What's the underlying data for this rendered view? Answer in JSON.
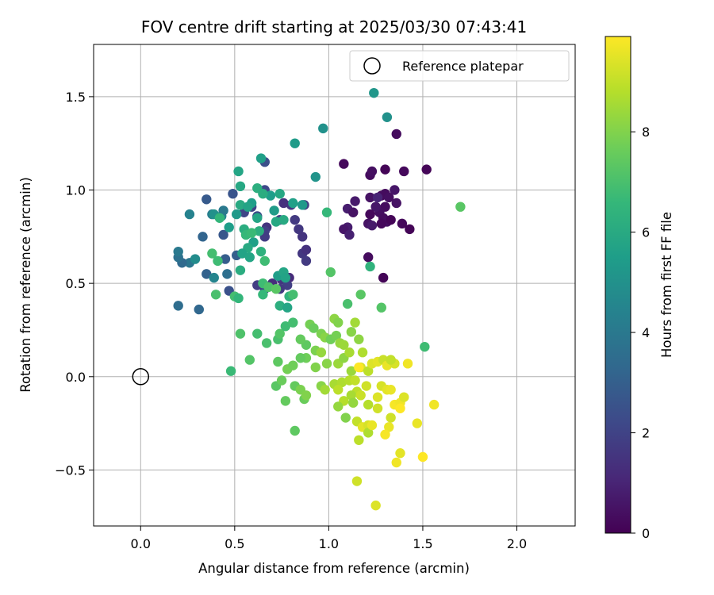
{
  "chart_data": {
    "type": "scatter",
    "title": "FOV centre drift starting at 2025/03/30 07:43:41",
    "xlabel": "Angular distance from reference (arcmin)",
    "ylabel": "Rotation from reference (arcmin)",
    "xlim": [
      -0.25,
      2.31
    ],
    "ylim": [
      -0.8,
      1.78
    ],
    "xticks": [
      0.0,
      0.5,
      1.0,
      1.5,
      2.0
    ],
    "xtick_labels": [
      "0.0",
      "0.5",
      "1.0",
      "1.5",
      "2.0"
    ],
    "yticks": [
      -0.5,
      0.0,
      0.5,
      1.0,
      1.5
    ],
    "ytick_labels": [
      "−0.5",
      "0.0",
      "0.5",
      "1.0",
      "1.5"
    ],
    "grid": true,
    "legend_placement": "top-right",
    "legend": [
      {
        "label": "Reference platepar",
        "marker": "open-circle"
      }
    ],
    "reference_point": {
      "x": 0.0,
      "y": 0.0
    },
    "colorbar": {
      "label": "Hours from first FF file",
      "colormap": "viridis",
      "range": [
        0,
        9.9
      ],
      "ticks": [
        0,
        2,
        4,
        6,
        8
      ],
      "tick_labels": [
        "0",
        "2",
        "4",
        "6",
        "8"
      ]
    },
    "colormap_stops": [
      "#440154",
      "#482878",
      "#3e4989",
      "#31688e",
      "#26828e",
      "#1f9e89",
      "#35b779",
      "#6ece58",
      "#b5de2b",
      "#fde725"
    ],
    "points": [
      {
        "x": 1.08,
        "y": 1.14,
        "h": 0.2
      },
      {
        "x": 1.22,
        "y": 1.08,
        "h": 0.3
      },
      {
        "x": 1.23,
        "y": 1.1,
        "h": 0.4
      },
      {
        "x": 1.3,
        "y": 1.11,
        "h": 0.1
      },
      {
        "x": 1.4,
        "y": 1.1,
        "h": 0.2
      },
      {
        "x": 1.52,
        "y": 1.11,
        "h": 0.1
      },
      {
        "x": 1.36,
        "y": 1.3,
        "h": 0.3
      },
      {
        "x": 1.22,
        "y": 0.96,
        "h": 0.5
      },
      {
        "x": 1.28,
        "y": 0.97,
        "h": 0.2
      },
      {
        "x": 1.3,
        "y": 0.98,
        "h": 0.3
      },
      {
        "x": 1.32,
        "y": 0.96,
        "h": 0.4
      },
      {
        "x": 1.35,
        "y": 1.0,
        "h": 0.6
      },
      {
        "x": 1.14,
        "y": 0.94,
        "h": 0.7
      },
      {
        "x": 1.1,
        "y": 0.9,
        "h": 0.8
      },
      {
        "x": 1.13,
        "y": 0.88,
        "h": 0.5
      },
      {
        "x": 1.3,
        "y": 0.91,
        "h": 0.3
      },
      {
        "x": 1.27,
        "y": 0.88,
        "h": 0.4
      },
      {
        "x": 1.25,
        "y": 0.91,
        "h": 0.6
      },
      {
        "x": 1.36,
        "y": 0.93,
        "h": 0.5
      },
      {
        "x": 1.22,
        "y": 0.87,
        "h": 0.2
      },
      {
        "x": 1.29,
        "y": 0.85,
        "h": 0.3
      },
      {
        "x": 1.31,
        "y": 0.83,
        "h": 0.4
      },
      {
        "x": 1.28,
        "y": 0.82,
        "h": 0.2
      },
      {
        "x": 1.33,
        "y": 0.84,
        "h": 0.1
      },
      {
        "x": 1.39,
        "y": 0.82,
        "h": 0.2
      },
      {
        "x": 1.43,
        "y": 0.79,
        "h": 0.1
      },
      {
        "x": 1.21,
        "y": 0.82,
        "h": 0.5
      },
      {
        "x": 1.1,
        "y": 0.8,
        "h": 0.8
      },
      {
        "x": 1.08,
        "y": 0.79,
        "h": 0.6
      },
      {
        "x": 1.11,
        "y": 0.76,
        "h": 0.9
      },
      {
        "x": 1.23,
        "y": 0.81,
        "h": 0.7
      },
      {
        "x": 1.21,
        "y": 0.64,
        "h": 0.3
      },
      {
        "x": 1.29,
        "y": 0.53,
        "h": 0.1
      },
      {
        "x": 1.26,
        "y": 0.96,
        "h": 1.0
      },
      {
        "x": 0.66,
        "y": 1.15,
        "h": 2.4
      },
      {
        "x": 0.49,
        "y": 0.98,
        "h": 2.6
      },
      {
        "x": 0.66,
        "y": 1.0,
        "h": 2.2
      },
      {
        "x": 0.35,
        "y": 0.95,
        "h": 2.8
      },
      {
        "x": 0.8,
        "y": 0.92,
        "h": 1.6
      },
      {
        "x": 0.76,
        "y": 0.93,
        "h": 1.4
      },
      {
        "x": 0.87,
        "y": 0.92,
        "h": 1.8
      },
      {
        "x": 0.59,
        "y": 0.91,
        "h": 2.0
      },
      {
        "x": 0.55,
        "y": 0.88,
        "h": 2.1
      },
      {
        "x": 0.62,
        "y": 0.86,
        "h": 2.3
      },
      {
        "x": 0.74,
        "y": 0.84,
        "h": 1.9
      },
      {
        "x": 0.82,
        "y": 0.84,
        "h": 1.7
      },
      {
        "x": 0.67,
        "y": 0.8,
        "h": 1.5
      },
      {
        "x": 0.66,
        "y": 0.78,
        "h": 1.9
      },
      {
        "x": 0.84,
        "y": 0.79,
        "h": 1.6
      },
      {
        "x": 0.86,
        "y": 0.75,
        "h": 1.5
      },
      {
        "x": 0.44,
        "y": 0.76,
        "h": 2.7
      },
      {
        "x": 0.33,
        "y": 0.75,
        "h": 3.2
      },
      {
        "x": 0.66,
        "y": 0.75,
        "h": 1.8
      },
      {
        "x": 0.86,
        "y": 0.66,
        "h": 1.6
      },
      {
        "x": 0.88,
        "y": 0.68,
        "h": 1.4
      },
      {
        "x": 0.88,
        "y": 0.62,
        "h": 1.7
      },
      {
        "x": 0.45,
        "y": 0.63,
        "h": 2.9
      },
      {
        "x": 0.51,
        "y": 0.65,
        "h": 3.0
      },
      {
        "x": 0.35,
        "y": 0.55,
        "h": 3.1
      },
      {
        "x": 0.7,
        "y": 0.5,
        "h": 1.3
      },
      {
        "x": 0.75,
        "y": 0.52,
        "h": 1.5
      },
      {
        "x": 0.79,
        "y": 0.53,
        "h": 1.2
      },
      {
        "x": 0.78,
        "y": 0.49,
        "h": 1.9
      },
      {
        "x": 0.74,
        "y": 0.47,
        "h": 1.7
      },
      {
        "x": 0.66,
        "y": 0.47,
        "h": 2.0
      },
      {
        "x": 0.62,
        "y": 0.49,
        "h": 1.8
      },
      {
        "x": 0.47,
        "y": 0.46,
        "h": 2.5
      },
      {
        "x": 0.2,
        "y": 0.38,
        "h": 3.5
      },
      {
        "x": 0.31,
        "y": 0.36,
        "h": 3.3
      },
      {
        "x": 0.46,
        "y": 0.55,
        "h": 3.6
      },
      {
        "x": 0.26,
        "y": 0.61,
        "h": 3.9
      },
      {
        "x": 0.22,
        "y": 0.61,
        "h": 3.4
      },
      {
        "x": 0.2,
        "y": 0.64,
        "h": 3.7
      },
      {
        "x": 0.2,
        "y": 0.67,
        "h": 4.0
      },
      {
        "x": 0.26,
        "y": 0.87,
        "h": 4.4
      },
      {
        "x": 0.38,
        "y": 0.87,
        "h": 4.2
      },
      {
        "x": 0.43,
        "y": 0.86,
        "h": 4.6
      },
      {
        "x": 0.44,
        "y": 0.89,
        "h": 4.0
      },
      {
        "x": 0.29,
        "y": 0.63,
        "h": 4.8
      },
      {
        "x": 0.39,
        "y": 0.53,
        "h": 4.5
      },
      {
        "x": 0.52,
        "y": 1.1,
        "h": 5.8
      },
      {
        "x": 0.64,
        "y": 1.17,
        "h": 5.6
      },
      {
        "x": 0.82,
        "y": 1.25,
        "h": 5.4
      },
      {
        "x": 0.97,
        "y": 1.33,
        "h": 5.0
      },
      {
        "x": 1.24,
        "y": 1.52,
        "h": 5.2
      },
      {
        "x": 1.31,
        "y": 1.39,
        "h": 5.0
      },
      {
        "x": 0.93,
        "y": 1.07,
        "h": 5.1
      },
      {
        "x": 0.53,
        "y": 1.02,
        "h": 5.9
      },
      {
        "x": 0.62,
        "y": 1.01,
        "h": 6.2
      },
      {
        "x": 0.59,
        "y": 0.93,
        "h": 5.5
      },
      {
        "x": 0.53,
        "y": 0.92,
        "h": 6.0
      },
      {
        "x": 0.57,
        "y": 0.91,
        "h": 5.7
      },
      {
        "x": 0.51,
        "y": 0.87,
        "h": 5.3
      },
      {
        "x": 0.47,
        "y": 0.8,
        "h": 5.5
      },
      {
        "x": 0.55,
        "y": 0.79,
        "h": 6.1
      },
      {
        "x": 0.62,
        "y": 0.85,
        "h": 5.8
      },
      {
        "x": 0.63,
        "y": 0.78,
        "h": 6.2
      },
      {
        "x": 0.56,
        "y": 0.76,
        "h": 5.9
      },
      {
        "x": 0.6,
        "y": 0.72,
        "h": 5.6
      },
      {
        "x": 0.57,
        "y": 0.69,
        "h": 6.0
      },
      {
        "x": 0.54,
        "y": 0.66,
        "h": 5.7
      },
      {
        "x": 0.58,
        "y": 0.64,
        "h": 5.8
      },
      {
        "x": 0.64,
        "y": 0.67,
        "h": 6.3
      },
      {
        "x": 0.53,
        "y": 0.57,
        "h": 6.1
      },
      {
        "x": 0.71,
        "y": 0.89,
        "h": 5.4
      },
      {
        "x": 0.72,
        "y": 0.83,
        "h": 5.9
      },
      {
        "x": 0.76,
        "y": 0.84,
        "h": 6.0
      },
      {
        "x": 0.81,
        "y": 0.93,
        "h": 5.6
      },
      {
        "x": 0.86,
        "y": 0.92,
        "h": 5.3
      },
      {
        "x": 0.74,
        "y": 0.98,
        "h": 5.9
      },
      {
        "x": 0.69,
        "y": 0.97,
        "h": 5.5
      },
      {
        "x": 0.65,
        "y": 0.98,
        "h": 6.1
      },
      {
        "x": 0.73,
        "y": 0.54,
        "h": 5.5
      },
      {
        "x": 0.76,
        "y": 0.56,
        "h": 5.8
      },
      {
        "x": 1.22,
        "y": 0.59,
        "h": 6.4
      },
      {
        "x": 0.77,
        "y": 0.53,
        "h": 5.7
      },
      {
        "x": 0.99,
        "y": 0.88,
        "h": 6.6
      },
      {
        "x": 0.39,
        "y": 0.87,
        "h": 5.0
      },
      {
        "x": 0.42,
        "y": 0.85,
        "h": 6.5
      },
      {
        "x": 0.38,
        "y": 0.66,
        "h": 6.9
      },
      {
        "x": 0.41,
        "y": 0.62,
        "h": 6.8
      },
      {
        "x": 0.56,
        "y": 0.76,
        "h": 6.6
      },
      {
        "x": 0.59,
        "y": 0.77,
        "h": 6.7
      },
      {
        "x": 0.66,
        "y": 0.62,
        "h": 6.8
      },
      {
        "x": 0.5,
        "y": 0.43,
        "h": 6.9
      },
      {
        "x": 0.52,
        "y": 0.42,
        "h": 6.5
      },
      {
        "x": 0.4,
        "y": 0.44,
        "h": 7.0
      },
      {
        "x": 0.48,
        "y": 0.03,
        "h": 6.7
      },
      {
        "x": 0.53,
        "y": 0.23,
        "h": 7.1
      },
      {
        "x": 0.62,
        "y": 0.23,
        "h": 6.9
      },
      {
        "x": 0.58,
        "y": 0.09,
        "h": 7.2
      },
      {
        "x": 0.67,
        "y": 0.18,
        "h": 7.0
      },
      {
        "x": 0.65,
        "y": 0.5,
        "h": 6.8
      },
      {
        "x": 0.68,
        "y": 0.48,
        "h": 7.1
      },
      {
        "x": 0.72,
        "y": 0.47,
        "h": 7.3
      },
      {
        "x": 0.65,
        "y": 0.44,
        "h": 6.6
      },
      {
        "x": 0.74,
        "y": 0.38,
        "h": 6.2
      },
      {
        "x": 0.78,
        "y": 0.37,
        "h": 5.8
      },
      {
        "x": 0.79,
        "y": 0.43,
        "h": 6.4
      },
      {
        "x": 0.81,
        "y": 0.44,
        "h": 6.9
      },
      {
        "x": 0.73,
        "y": 0.2,
        "h": 7.0
      },
      {
        "x": 0.74,
        "y": 0.23,
        "h": 7.2
      },
      {
        "x": 0.77,
        "y": 0.27,
        "h": 6.8
      },
      {
        "x": 0.81,
        "y": 0.29,
        "h": 6.9
      },
      {
        "x": 1.01,
        "y": 0.56,
        "h": 7.2
      },
      {
        "x": 1.1,
        "y": 0.39,
        "h": 7.0
      },
      {
        "x": 1.17,
        "y": 0.44,
        "h": 7.3
      },
      {
        "x": 1.28,
        "y": 0.37,
        "h": 7.2
      },
      {
        "x": 1.51,
        "y": 0.16,
        "h": 6.8
      },
      {
        "x": 1.7,
        "y": 0.91,
        "h": 7.3
      },
      {
        "x": 0.82,
        "y": -0.29,
        "h": 7.4
      },
      {
        "x": 0.77,
        "y": -0.13,
        "h": 7.5
      },
      {
        "x": 0.72,
        "y": -0.05,
        "h": 7.3
      },
      {
        "x": 0.75,
        "y": -0.02,
        "h": 7.6
      },
      {
        "x": 0.73,
        "y": 0.08,
        "h": 7.4
      },
      {
        "x": 0.78,
        "y": 0.04,
        "h": 7.8
      },
      {
        "x": 0.81,
        "y": 0.06,
        "h": 7.7
      },
      {
        "x": 0.82,
        "y": -0.05,
        "h": 7.5
      },
      {
        "x": 0.85,
        "y": -0.07,
        "h": 7.9
      },
      {
        "x": 0.87,
        "y": -0.12,
        "h": 7.6
      },
      {
        "x": 0.88,
        "y": -0.1,
        "h": 8.0
      },
      {
        "x": 0.88,
        "y": 0.17,
        "h": 7.4
      },
      {
        "x": 0.85,
        "y": 0.2,
        "h": 7.5
      },
      {
        "x": 0.9,
        "y": 0.28,
        "h": 7.8
      },
      {
        "x": 0.92,
        "y": 0.26,
        "h": 7.6
      },
      {
        "x": 0.96,
        "y": 0.23,
        "h": 7.9
      },
      {
        "x": 0.98,
        "y": 0.21,
        "h": 8.1
      },
      {
        "x": 1.01,
        "y": 0.2,
        "h": 7.7
      },
      {
        "x": 1.04,
        "y": 0.22,
        "h": 7.8
      },
      {
        "x": 1.03,
        "y": 0.31,
        "h": 8.2
      },
      {
        "x": 1.05,
        "y": 0.29,
        "h": 8.0
      },
      {
        "x": 1.06,
        "y": 0.18,
        "h": 8.3
      },
      {
        "x": 1.08,
        "y": 0.17,
        "h": 8.4
      },
      {
        "x": 1.12,
        "y": 0.24,
        "h": 8.1
      },
      {
        "x": 1.14,
        "y": 0.29,
        "h": 8.5
      },
      {
        "x": 1.16,
        "y": 0.2,
        "h": 8.2
      },
      {
        "x": 1.18,
        "y": 0.13,
        "h": 8.7
      },
      {
        "x": 0.93,
        "y": 0.14,
        "h": 7.9
      },
      {
        "x": 0.96,
        "y": 0.13,
        "h": 8.3
      },
      {
        "x": 0.99,
        "y": 0.07,
        "h": 8.1
      },
      {
        "x": 0.93,
        "y": 0.05,
        "h": 8.0
      },
      {
        "x": 0.88,
        "y": 0.1,
        "h": 7.7
      },
      {
        "x": 0.85,
        "y": 0.1,
        "h": 7.5
      },
      {
        "x": 0.96,
        "y": -0.05,
        "h": 8.1
      },
      {
        "x": 0.98,
        "y": -0.07,
        "h": 8.5
      },
      {
        "x": 1.03,
        "y": -0.04,
        "h": 8.6
      },
      {
        "x": 1.07,
        "y": -0.03,
        "h": 8.7
      },
      {
        "x": 1.05,
        "y": -0.07,
        "h": 8.9
      },
      {
        "x": 1.08,
        "y": -0.13,
        "h": 8.8
      },
      {
        "x": 1.05,
        "y": -0.16,
        "h": 8.3
      },
      {
        "x": 1.09,
        "y": -0.22,
        "h": 8.0
      },
      {
        "x": 1.05,
        "y": 0.07,
        "h": 8.4
      },
      {
        "x": 1.08,
        "y": 0.1,
        "h": 8.2
      },
      {
        "x": 1.11,
        "y": 0.13,
        "h": 8.6
      },
      {
        "x": 1.12,
        "y": 0.03,
        "h": 8.4
      },
      {
        "x": 1.11,
        "y": -0.02,
        "h": 8.8
      },
      {
        "x": 1.14,
        "y": -0.02,
        "h": 9.0
      },
      {
        "x": 1.15,
        "y": -0.08,
        "h": 8.9
      },
      {
        "x": 1.12,
        "y": -0.1,
        "h": 8.6
      },
      {
        "x": 1.13,
        "y": -0.14,
        "h": 8.3
      },
      {
        "x": 1.17,
        "y": -0.1,
        "h": 9.1
      },
      {
        "x": 1.2,
        "y": -0.05,
        "h": 9.2
      },
      {
        "x": 1.17,
        "y": 0.05,
        "h": 9.3
      },
      {
        "x": 1.21,
        "y": 0.03,
        "h": 8.9
      },
      {
        "x": 1.23,
        "y": 0.07,
        "h": 9.4
      },
      {
        "x": 1.21,
        "y": -0.15,
        "h": 8.8
      },
      {
        "x": 1.15,
        "y": -0.24,
        "h": 9.0
      },
      {
        "x": 1.18,
        "y": -0.27,
        "h": 9.5
      },
      {
        "x": 1.21,
        "y": -0.26,
        "h": 9.3
      },
      {
        "x": 1.21,
        "y": -0.3,
        "h": 8.7
      },
      {
        "x": 1.16,
        "y": -0.34,
        "h": 8.9
      },
      {
        "x": 1.23,
        "y": -0.26,
        "h": 9.6
      },
      {
        "x": 1.26,
        "y": -0.17,
        "h": 9.2
      },
      {
        "x": 1.26,
        "y": -0.11,
        "h": 9.4
      },
      {
        "x": 1.28,
        "y": -0.05,
        "h": 9.3
      },
      {
        "x": 1.31,
        "y": -0.07,
        "h": 9.5
      },
      {
        "x": 1.33,
        "y": -0.07,
        "h": 9.6
      },
      {
        "x": 1.35,
        "y": -0.15,
        "h": 9.8
      },
      {
        "x": 1.38,
        "y": -0.14,
        "h": 9.7
      },
      {
        "x": 1.38,
        "y": -0.17,
        "h": 9.9
      },
      {
        "x": 1.4,
        "y": -0.11,
        "h": 9.4
      },
      {
        "x": 1.33,
        "y": -0.22,
        "h": 9.2
      },
      {
        "x": 1.32,
        "y": -0.27,
        "h": 9.6
      },
      {
        "x": 1.3,
        "y": -0.31,
        "h": 9.8
      },
      {
        "x": 1.36,
        "y": -0.46,
        "h": 9.7
      },
      {
        "x": 1.38,
        "y": -0.41,
        "h": 9.5
      },
      {
        "x": 1.5,
        "y": -0.43,
        "h": 9.9
      },
      {
        "x": 1.47,
        "y": -0.25,
        "h": 9.6
      },
      {
        "x": 1.56,
        "y": -0.15,
        "h": 9.7
      },
      {
        "x": 1.25,
        "y": -0.69,
        "h": 9.4
      },
      {
        "x": 1.15,
        "y": -0.56,
        "h": 9.2
      },
      {
        "x": 1.26,
        "y": 0.08,
        "h": 9.5
      },
      {
        "x": 1.29,
        "y": 0.09,
        "h": 9.1
      },
      {
        "x": 1.31,
        "y": 0.06,
        "h": 9.6
      },
      {
        "x": 1.35,
        "y": 0.07,
        "h": 9.3
      },
      {
        "x": 1.33,
        "y": 0.09,
        "h": 9.0
      },
      {
        "x": 1.42,
        "y": 0.07,
        "h": 9.7
      },
      {
        "x": 1.16,
        "y": 0.05,
        "h": 9.9
      }
    ]
  }
}
